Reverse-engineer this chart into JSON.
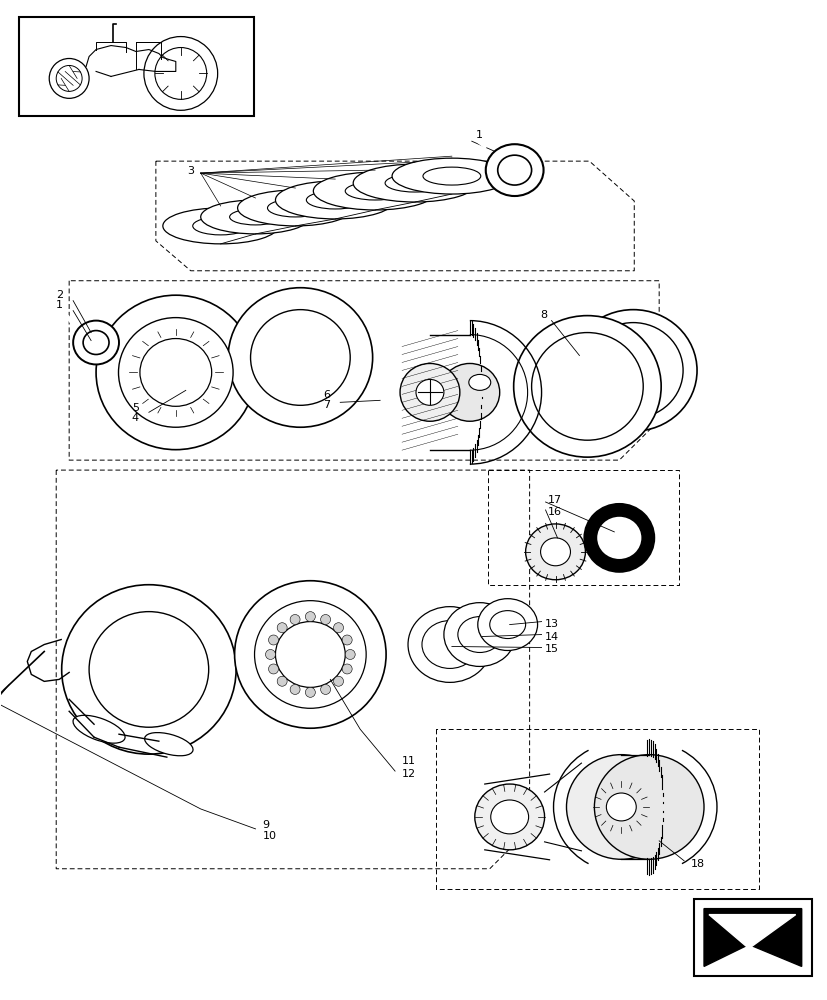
{
  "bg_color": "#ffffff",
  "lc": "#000000",
  "fig_width": 8.28,
  "fig_height": 10.0,
  "dpi": 100
}
